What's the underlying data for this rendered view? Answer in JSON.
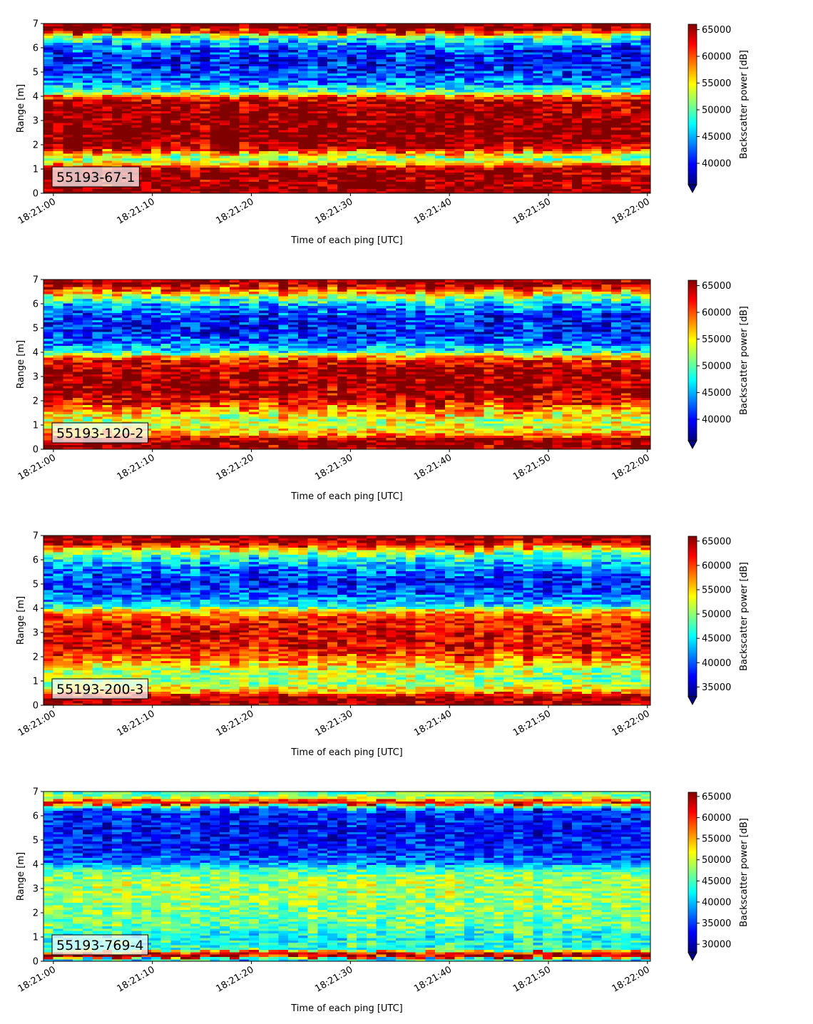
{
  "chart_data": [
    {
      "type": "heatmap",
      "label": "55193-67-1",
      "xlabel": "Time of each ping [UTC]",
      "ylabel": "Range [m]",
      "yticks": [
        0,
        1,
        2,
        3,
        4,
        5,
        6,
        7
      ],
      "xticks": [
        "18:21:00",
        "18:21:10",
        "18:21:20",
        "18:21:30",
        "18:21:40",
        "18:21:50",
        "18:22:00"
      ],
      "xtick_seconds": [
        0,
        10,
        20,
        30,
        40,
        50,
        60
      ],
      "xlim_seconds": [
        -1,
        60.3
      ],
      "ylim": [
        0,
        7
      ],
      "colorbar_label": "Backscatter power [dB]",
      "colorbar_range": [
        36000,
        66000
      ],
      "colorbar_ticks": [
        40000,
        45000,
        50000,
        55000,
        60000,
        65000
      ],
      "colorbar_extend": "min",
      "colormap": "jet",
      "profile": [
        [
          0.0,
          66000
        ],
        [
          0.15,
          66000
        ],
        [
          0.25,
          66000
        ],
        [
          0.5,
          65000
        ],
        [
          0.9,
          66000
        ],
        [
          1.1,
          62000
        ],
        [
          1.25,
          56000
        ],
        [
          1.45,
          50000
        ],
        [
          1.6,
          55000
        ],
        [
          1.8,
          62000
        ],
        [
          2.0,
          66000
        ],
        [
          3.0,
          66000
        ],
        [
          3.8,
          65000
        ],
        [
          4.0,
          60000
        ],
        [
          4.2,
          50000
        ],
        [
          4.5,
          44000
        ],
        [
          5.0,
          41000
        ],
        [
          5.5,
          40000
        ],
        [
          6.0,
          42000
        ],
        [
          6.4,
          48000
        ],
        [
          6.6,
          58000
        ],
        [
          6.8,
          66000
        ],
        [
          7.0,
          66000
        ]
      ]
    },
    {
      "type": "heatmap",
      "label": "55193-120-2",
      "xlabel": "Time of each ping [UTC]",
      "ylabel": "Range [m]",
      "yticks": [
        0,
        1,
        2,
        3,
        4,
        5,
        6,
        7
      ],
      "xticks": [
        "18:21:00",
        "18:21:10",
        "18:21:20",
        "18:21:30",
        "18:21:40",
        "18:21:50",
        "18:22:00"
      ],
      "xtick_seconds": [
        0,
        10,
        20,
        30,
        40,
        50,
        60
      ],
      "xlim_seconds": [
        -1,
        60.3
      ],
      "ylim": [
        0,
        7
      ],
      "colorbar_label": "Backscatter power [dB]",
      "colorbar_range": [
        36000,
        66000
      ],
      "colorbar_ticks": [
        40000,
        45000,
        50000,
        55000,
        60000,
        65000
      ],
      "colorbar_extend": "min",
      "colormap": "jet",
      "profile": [
        [
          0.0,
          64000
        ],
        [
          0.12,
          66000
        ],
        [
          0.4,
          66000
        ],
        [
          0.55,
          60000
        ],
        [
          0.8,
          55000
        ],
        [
          1.2,
          53000
        ],
        [
          1.5,
          56000
        ],
        [
          1.9,
          62000
        ],
        [
          2.3,
          65000
        ],
        [
          3.3,
          65000
        ],
        [
          3.7,
          62000
        ],
        [
          3.9,
          55000
        ],
        [
          4.1,
          46000
        ],
        [
          4.5,
          42000
        ],
        [
          5.0,
          40000
        ],
        [
          5.5,
          41000
        ],
        [
          6.0,
          45000
        ],
        [
          6.3,
          52000
        ],
        [
          6.6,
          60000
        ],
        [
          6.8,
          65000
        ],
        [
          7.0,
          66000
        ]
      ]
    },
    {
      "type": "heatmap",
      "label": "55193-200-3",
      "xlabel": "Time of each ping [UTC]",
      "ylabel": "Range [m]",
      "yticks": [
        0,
        1,
        2,
        3,
        4,
        5,
        6,
        7
      ],
      "xticks": [
        "18:21:00",
        "18:21:10",
        "18:21:20",
        "18:21:30",
        "18:21:40",
        "18:21:50",
        "18:22:00"
      ],
      "xtick_seconds": [
        0,
        10,
        20,
        30,
        40,
        50,
        60
      ],
      "xlim_seconds": [
        -1,
        60.3
      ],
      "ylim": [
        0,
        7
      ],
      "colorbar_label": "Backscatter power [dB]",
      "colorbar_range": [
        33000,
        66000
      ],
      "colorbar_ticks": [
        35000,
        40000,
        45000,
        50000,
        55000,
        60000,
        65000
      ],
      "colorbar_extend": "min",
      "colormap": "jet",
      "profile": [
        [
          0.0,
          62000
        ],
        [
          0.15,
          66000
        ],
        [
          0.4,
          64000
        ],
        [
          0.6,
          55000
        ],
        [
          1.0,
          50000
        ],
        [
          1.4,
          51000
        ],
        [
          1.8,
          57000
        ],
        [
          2.3,
          62000
        ],
        [
          3.0,
          63000
        ],
        [
          3.6,
          61000
        ],
        [
          3.9,
          55000
        ],
        [
          4.1,
          45000
        ],
        [
          4.6,
          40000
        ],
        [
          5.0,
          38000
        ],
        [
          5.5,
          40000
        ],
        [
          6.0,
          45000
        ],
        [
          6.3,
          50000
        ],
        [
          6.6,
          60000
        ],
        [
          6.8,
          65000
        ],
        [
          7.0,
          66000
        ]
      ]
    },
    {
      "type": "heatmap",
      "label": "55193-769-4",
      "xlabel": "Time of each ping [UTC]",
      "ylabel": "Range [m]",
      "yticks": [
        0,
        1,
        2,
        3,
        4,
        5,
        6,
        7
      ],
      "xticks": [
        "18:21:00",
        "18:21:10",
        "18:21:20",
        "18:21:30",
        "18:21:40",
        "18:21:50",
        "18:22:00"
      ],
      "xtick_seconds": [
        0,
        10,
        20,
        30,
        40,
        50,
        60
      ],
      "xlim_seconds": [
        -1,
        60.3
      ],
      "ylim": [
        0,
        7
      ],
      "colorbar_label": "Backscatter power [dB]",
      "colorbar_range": [
        28000,
        66000
      ],
      "colorbar_ticks": [
        30000,
        35000,
        40000,
        45000,
        50000,
        55000,
        60000,
        65000
      ],
      "colorbar_extend": "min",
      "colormap": "jet",
      "profile": [
        [
          0.0,
          40000
        ],
        [
          0.1,
          42000
        ],
        [
          0.2,
          64000
        ],
        [
          0.35,
          62000
        ],
        [
          0.5,
          44000
        ],
        [
          1.0,
          43000
        ],
        [
          1.5,
          46000
        ],
        [
          2.0,
          47000
        ],
        [
          2.5,
          48000
        ],
        [
          3.0,
          49000
        ],
        [
          3.5,
          48000
        ],
        [
          3.8,
          44000
        ],
        [
          4.1,
          37000
        ],
        [
          4.6,
          34000
        ],
        [
          5.5,
          33000
        ],
        [
          6.2,
          34000
        ],
        [
          6.4,
          46000
        ],
        [
          6.55,
          64000
        ],
        [
          6.75,
          50000
        ],
        [
          7.0,
          44000
        ]
      ]
    }
  ]
}
